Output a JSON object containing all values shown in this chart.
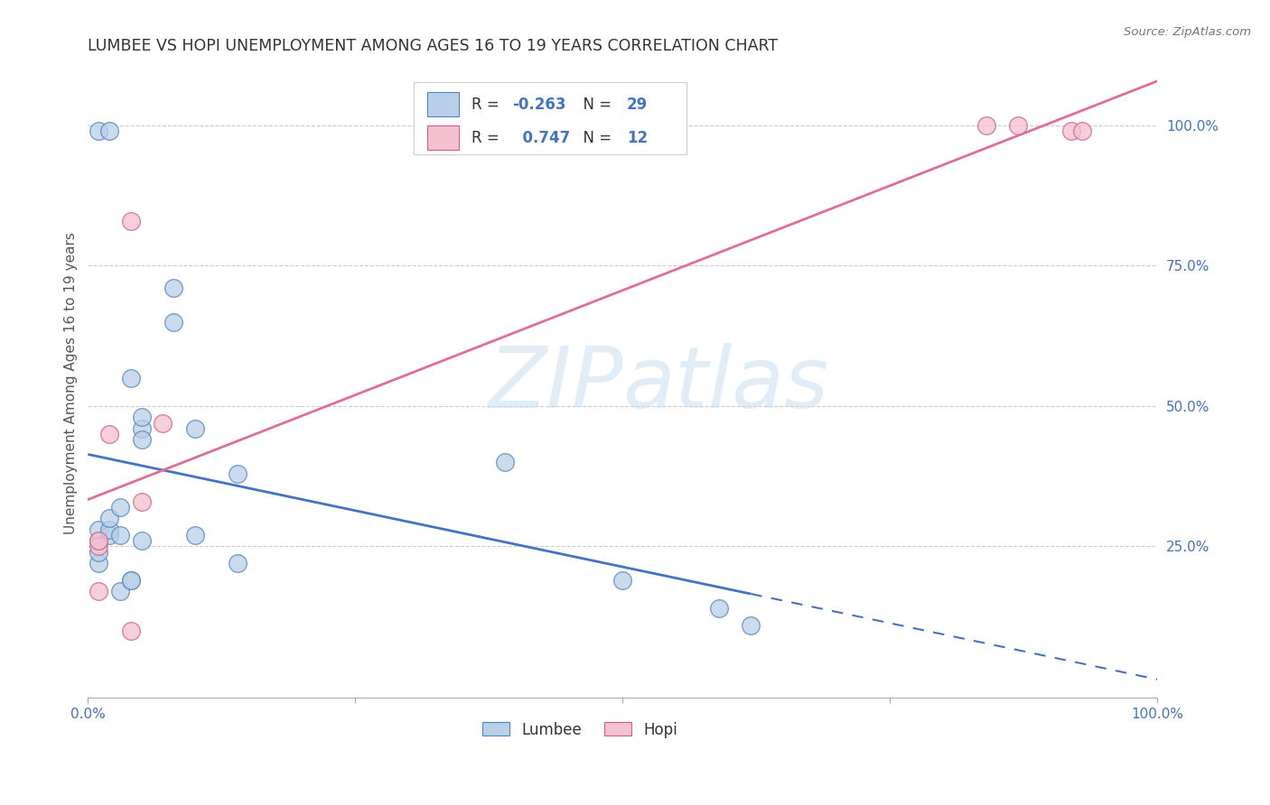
{
  "title": "LUMBEE VS HOPI UNEMPLOYMENT AMONG AGES 16 TO 19 YEARS CORRELATION CHART",
  "source": "Source: ZipAtlas.com",
  "ylabel": "Unemployment Among Ages 16 to 19 years",
  "lumbee_x": [
    0.01,
    0.01,
    0.01,
    0.01,
    0.01,
    0.02,
    0.02,
    0.02,
    0.02,
    0.03,
    0.03,
    0.03,
    0.04,
    0.04,
    0.04,
    0.05,
    0.05,
    0.05,
    0.05,
    0.08,
    0.08,
    0.1,
    0.1,
    0.14,
    0.14,
    0.39,
    0.5,
    0.59,
    0.62
  ],
  "lumbee_y": [
    0.22,
    0.24,
    0.26,
    0.28,
    0.99,
    0.27,
    0.28,
    0.3,
    0.99,
    0.27,
    0.32,
    0.17,
    0.19,
    0.19,
    0.55,
    0.46,
    0.48,
    0.44,
    0.26,
    0.71,
    0.65,
    0.27,
    0.46,
    0.38,
    0.22,
    0.4,
    0.19,
    0.14,
    0.11
  ],
  "hopi_x": [
    0.01,
    0.01,
    0.01,
    0.02,
    0.04,
    0.04,
    0.05,
    0.07,
    0.84,
    0.87,
    0.92,
    0.93
  ],
  "hopi_y": [
    0.25,
    0.26,
    0.17,
    0.45,
    0.83,
    0.1,
    0.33,
    0.47,
    1.0,
    1.0,
    0.99,
    0.99
  ],
  "lumbee_face_color": "#b8d0e8",
  "lumbee_edge_color": "#5585c0",
  "hopi_face_color": "#f5c0d0",
  "hopi_edge_color": "#d06080",
  "lumbee_line_color": "#4472c4",
  "hopi_line_color": "#e07090",
  "lumbee_R": -0.263,
  "lumbee_N": 29,
  "hopi_R": 0.747,
  "hopi_N": 12,
  "xlim": [
    0.0,
    1.0
  ],
  "ylim": [
    -0.02,
    1.1
  ],
  "watermark_color": "#ddeeff",
  "background_color": "#ffffff",
  "grid_color": "#cccccc",
  "tick_color": "#4472c4",
  "title_color": "#333333",
  "ylabel_color": "#555555",
  "source_color": "#777777",
  "legend_text_color": "#333333",
  "legend_rn_color": "#4472c4"
}
